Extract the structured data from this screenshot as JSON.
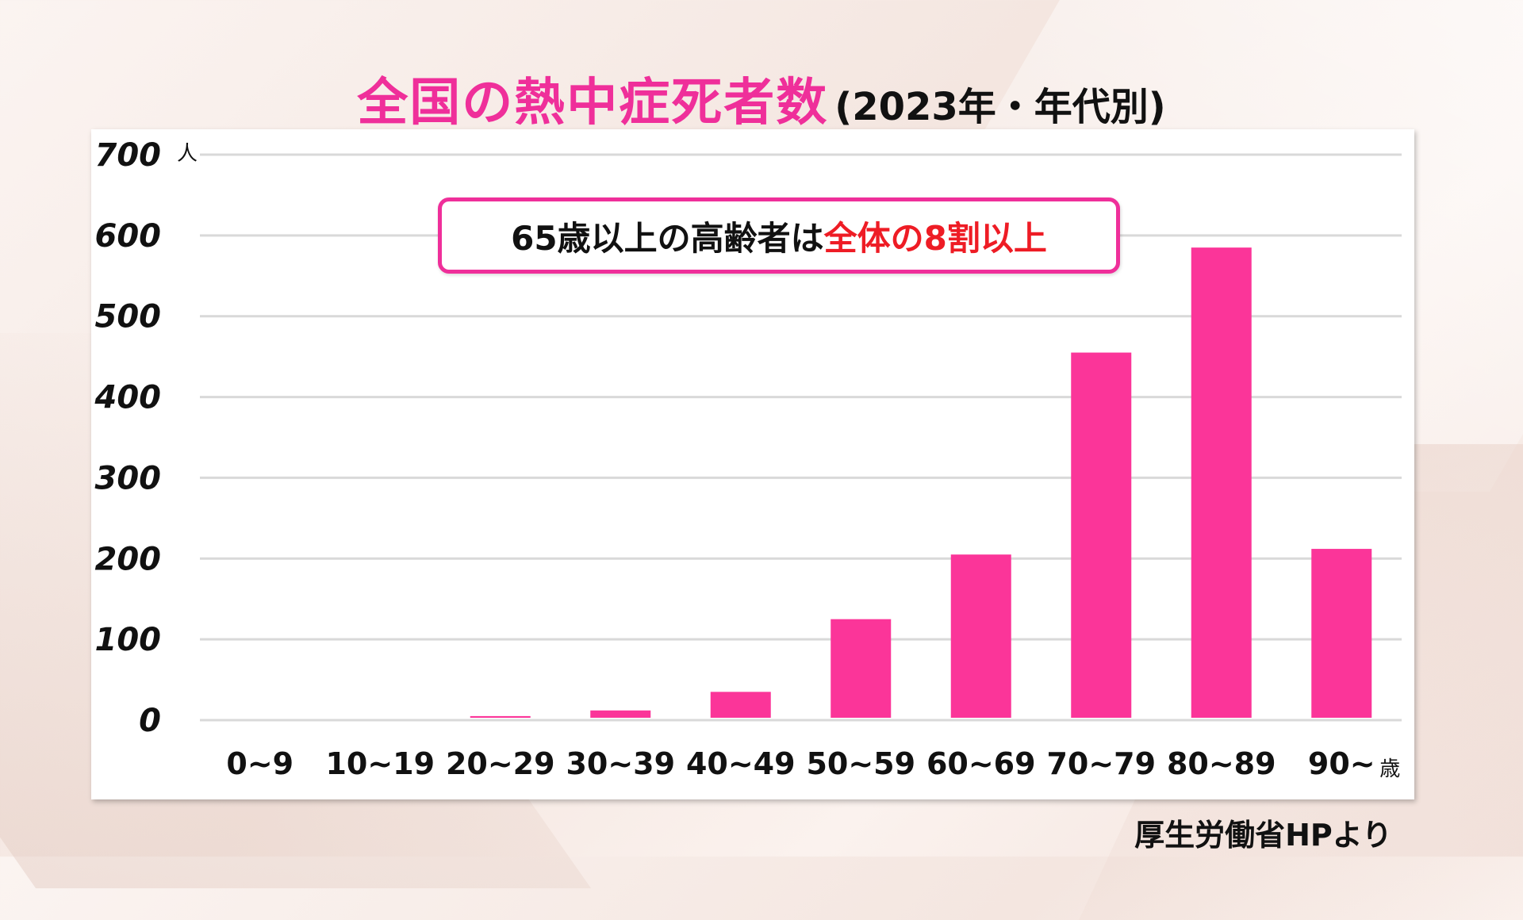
{
  "title": {
    "main": "全国の熱中症死者数",
    "sub": "(2023年・年代別)"
  },
  "callout": {
    "text_black": "65歳以上の高齢者は",
    "text_red": "全体の8割以上"
  },
  "source": "厚生労働省HPより",
  "colors": {
    "bar": "#fb3599",
    "title": "#ef2f9a",
    "callout_border": "#ef2f9a",
    "callout_highlight": "#ee1c25"
  },
  "chart_data": {
    "type": "bar",
    "categories": [
      "0~9",
      "10~19",
      "20~29",
      "30~39",
      "40~49",
      "50~59",
      "60~69",
      "70~79",
      "80~89",
      "90~"
    ],
    "x_unit_label": "歳",
    "y_unit_label": "人",
    "values": [
      0,
      0,
      5,
      12,
      35,
      125,
      205,
      455,
      585,
      212
    ],
    "yticks": [
      0,
      100,
      200,
      300,
      400,
      500,
      600,
      700
    ],
    "ylim": [
      0,
      700
    ],
    "grid": true,
    "legend": "none"
  }
}
